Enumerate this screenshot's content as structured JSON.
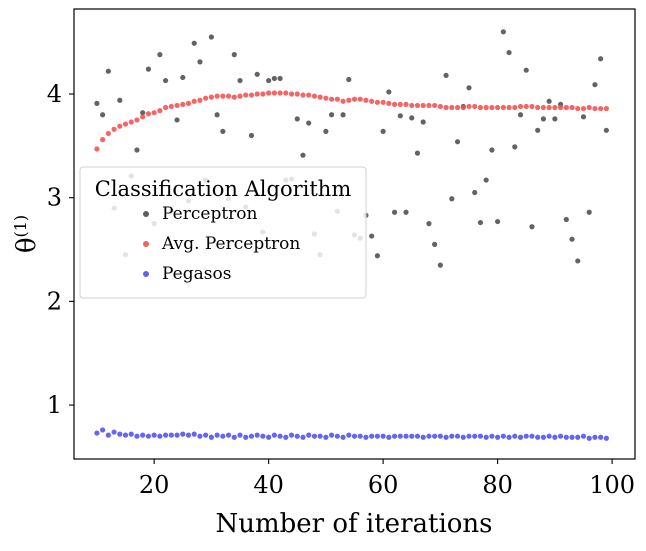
{
  "chart_data": {
    "type": "scatter",
    "title": "",
    "xlabel": "Number of iterations",
    "ylabel": "θ",
    "ylabel_superscript": "(1)",
    "xlim": [
      6,
      104
    ],
    "ylim": [
      0.48,
      4.82
    ],
    "xticks": [
      20,
      40,
      60,
      80,
      100
    ],
    "yticks": [
      1,
      2,
      3,
      4
    ],
    "grid": false,
    "legend": {
      "title": "Classification Algorithm",
      "placement": "center-left"
    },
    "series": [
      {
        "name": "Perceptron",
        "color": "#4d4d4d",
        "x": [
          10,
          11,
          12,
          13,
          14,
          15,
          16,
          17,
          18,
          19,
          20,
          21,
          22,
          23,
          24,
          25,
          26,
          27,
          28,
          29,
          30,
          31,
          32,
          33,
          34,
          35,
          36,
          37,
          38,
          39,
          40,
          41,
          42,
          43,
          44,
          45,
          46,
          47,
          48,
          49,
          50,
          51,
          52,
          53,
          54,
          55,
          56,
          57,
          58,
          59,
          60,
          61,
          62,
          63,
          64,
          65,
          66,
          67,
          68,
          69,
          70,
          71,
          72,
          73,
          74,
          75,
          76,
          77,
          78,
          79,
          80,
          81,
          82,
          83,
          84,
          85,
          86,
          87,
          88,
          89,
          90,
          91,
          92,
          93,
          94,
          95,
          96,
          97,
          98,
          99
        ],
        "y": [
          3.91,
          3.8,
          4.22,
          2.9,
          3.94,
          2.45,
          3.21,
          3.46,
          3.82,
          4.24,
          2.75,
          4.38,
          4.13,
          2.87,
          3.75,
          4.16,
          2.97,
          4.49,
          4.31,
          3.17,
          4.55,
          3.8,
          3.64,
          2.99,
          4.38,
          4.13,
          2.91,
          3.6,
          4.19,
          2.67,
          4.13,
          4.15,
          4.15,
          3.17,
          3.18,
          3.76,
          3.41,
          3.72,
          2.65,
          2.45,
          3.64,
          3.8,
          2.87,
          3.8,
          4.14,
          2.64,
          2.61,
          2.83,
          2.63,
          2.44,
          3.64,
          4.02,
          2.86,
          3.79,
          2.86,
          3.77,
          3.43,
          3.73,
          2.75,
          2.55,
          2.35,
          4.18,
          2.99,
          3.54,
          3.88,
          4.06,
          3.05,
          2.76,
          3.17,
          3.46,
          2.77,
          4.6,
          4.4,
          3.49,
          3.8,
          4.23,
          2.72,
          3.65,
          3.76,
          3.93,
          3.76,
          3.9,
          2.79,
          2.6,
          2.39,
          3.78,
          2.86,
          4.09,
          4.34,
          3.65
        ]
      },
      {
        "name": "Avg. Perceptron",
        "color": "#f25050",
        "x": [
          10,
          11,
          12,
          13,
          14,
          15,
          16,
          17,
          18,
          19,
          20,
          21,
          22,
          23,
          24,
          25,
          26,
          27,
          28,
          29,
          30,
          31,
          32,
          33,
          34,
          35,
          36,
          37,
          38,
          39,
          40,
          41,
          42,
          43,
          44,
          45,
          46,
          47,
          48,
          49,
          50,
          51,
          52,
          53,
          54,
          55,
          56,
          57,
          58,
          59,
          60,
          61,
          62,
          63,
          64,
          65,
          66,
          67,
          68,
          69,
          70,
          71,
          72,
          73,
          74,
          75,
          76,
          77,
          78,
          79,
          80,
          81,
          82,
          83,
          84,
          85,
          86,
          87,
          88,
          89,
          90,
          91,
          92,
          93,
          94,
          95,
          96,
          97,
          98,
          99
        ],
        "y": [
          3.47,
          3.56,
          3.62,
          3.66,
          3.69,
          3.71,
          3.73,
          3.75,
          3.78,
          3.81,
          3.82,
          3.84,
          3.87,
          3.88,
          3.89,
          3.9,
          3.91,
          3.93,
          3.94,
          3.96,
          3.97,
          3.98,
          3.98,
          3.98,
          3.97,
          3.98,
          3.99,
          3.99,
          4.0,
          4.0,
          4.01,
          4.01,
          4.01,
          4.01,
          4.0,
          4.0,
          3.99,
          3.99,
          3.98,
          3.97,
          3.96,
          3.95,
          3.95,
          3.93,
          3.94,
          3.95,
          3.95,
          3.94,
          3.93,
          3.92,
          3.92,
          3.91,
          3.9,
          3.9,
          3.9,
          3.89,
          3.89,
          3.89,
          3.89,
          3.89,
          3.88,
          3.87,
          3.87,
          3.87,
          3.87,
          3.88,
          3.88,
          3.87,
          3.87,
          3.87,
          3.87,
          3.87,
          3.87,
          3.87,
          3.88,
          3.88,
          3.88,
          3.87,
          3.87,
          3.87,
          3.87,
          3.87,
          3.87,
          3.87,
          3.86,
          3.86,
          3.87,
          3.86,
          3.86,
          3.86
        ]
      },
      {
        "name": "Pegasos",
        "color": "#5050f0",
        "x": [
          10,
          11,
          12,
          13,
          14,
          15,
          16,
          17,
          18,
          19,
          20,
          21,
          22,
          23,
          24,
          25,
          26,
          27,
          28,
          29,
          30,
          31,
          32,
          33,
          34,
          35,
          36,
          37,
          38,
          39,
          40,
          41,
          42,
          43,
          44,
          45,
          46,
          47,
          48,
          49,
          50,
          51,
          52,
          53,
          54,
          55,
          56,
          57,
          58,
          59,
          60,
          61,
          62,
          63,
          64,
          65,
          66,
          67,
          68,
          69,
          70,
          71,
          72,
          73,
          74,
          75,
          76,
          77,
          78,
          79,
          80,
          81,
          82,
          83,
          84,
          85,
          86,
          87,
          88,
          89,
          90,
          91,
          92,
          93,
          94,
          95,
          96,
          97,
          98,
          99
        ],
        "y": [
          0.73,
          0.76,
          0.71,
          0.74,
          0.72,
          0.71,
          0.72,
          0.7,
          0.71,
          0.7,
          0.71,
          0.7,
          0.71,
          0.71,
          0.71,
          0.72,
          0.71,
          0.72,
          0.7,
          0.71,
          0.69,
          0.71,
          0.7,
          0.71,
          0.69,
          0.71,
          0.69,
          0.7,
          0.71,
          0.7,
          0.69,
          0.71,
          0.7,
          0.69,
          0.71,
          0.7,
          0.69,
          0.71,
          0.7,
          0.7,
          0.69,
          0.71,
          0.7,
          0.69,
          0.71,
          0.7,
          0.7,
          0.69,
          0.7,
          0.7,
          0.7,
          0.69,
          0.7,
          0.7,
          0.7,
          0.7,
          0.7,
          0.69,
          0.7,
          0.7,
          0.7,
          0.69,
          0.7,
          0.7,
          0.69,
          0.7,
          0.7,
          0.7,
          0.69,
          0.7,
          0.69,
          0.7,
          0.69,
          0.7,
          0.69,
          0.7,
          0.7,
          0.69,
          0.69,
          0.7,
          0.69,
          0.7,
          0.69,
          0.69,
          0.69,
          0.7,
          0.68,
          0.69,
          0.69,
          0.68
        ]
      }
    ]
  }
}
